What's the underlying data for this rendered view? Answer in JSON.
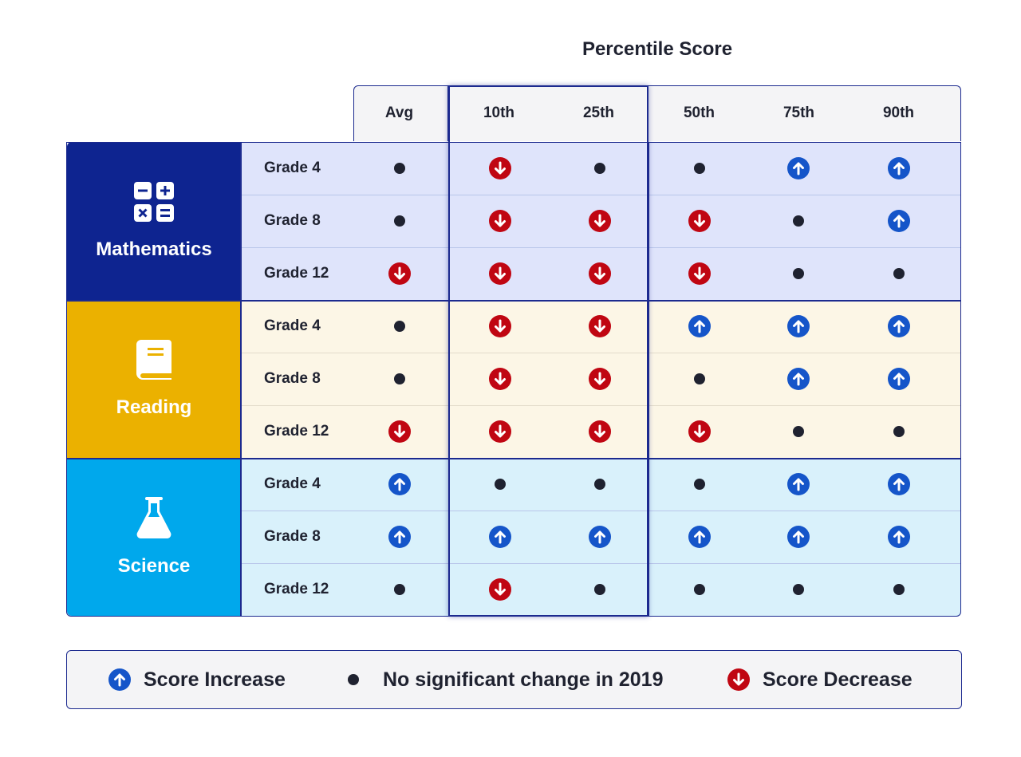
{
  "chart_data": {
    "type": "table",
    "title": "Percentile Score",
    "columns": [
      "Avg",
      "10th",
      "25th",
      "50th",
      "75th",
      "90th"
    ],
    "highlighted_columns": [
      "10th",
      "25th"
    ],
    "subjects": [
      {
        "name": "Mathematics",
        "icon": "calculator-icon",
        "color": "#0e2490",
        "row_bg": "#dfe4fb",
        "rows": [
          {
            "grade": "Grade 4",
            "values": [
              "none",
              "decrease",
              "none",
              "none",
              "increase",
              "increase"
            ]
          },
          {
            "grade": "Grade 8",
            "values": [
              "none",
              "decrease",
              "decrease",
              "decrease",
              "none",
              "increase"
            ]
          },
          {
            "grade": "Grade 12",
            "values": [
              "decrease",
              "decrease",
              "decrease",
              "decrease",
              "none",
              "none"
            ]
          }
        ]
      },
      {
        "name": "Reading",
        "icon": "book-icon",
        "color": "#ebb100",
        "row_bg": "#fcf6e6",
        "rows": [
          {
            "grade": "Grade 4",
            "values": [
              "none",
              "decrease",
              "decrease",
              "increase",
              "increase",
              "increase"
            ]
          },
          {
            "grade": "Grade 8",
            "values": [
              "none",
              "decrease",
              "decrease",
              "none",
              "increase",
              "increase"
            ]
          },
          {
            "grade": "Grade 12",
            "values": [
              "decrease",
              "decrease",
              "decrease",
              "decrease",
              "none",
              "none"
            ]
          }
        ]
      },
      {
        "name": "Science",
        "icon": "flask-icon",
        "color": "#00a8ec",
        "row_bg": "#d9f1fb",
        "rows": [
          {
            "grade": "Grade 4",
            "values": [
              "increase",
              "none",
              "none",
              "none",
              "increase",
              "increase"
            ]
          },
          {
            "grade": "Grade 8",
            "values": [
              "increase",
              "increase",
              "increase",
              "increase",
              "increase",
              "increase"
            ]
          },
          {
            "grade": "Grade 12",
            "values": [
              "none",
              "decrease",
              "none",
              "none",
              "none",
              "none"
            ]
          }
        ]
      }
    ],
    "legend": [
      {
        "symbol": "increase",
        "label": "Score Increase"
      },
      {
        "symbol": "none",
        "label": "No significant change in 2019"
      },
      {
        "symbol": "decrease",
        "label": "Score Decrease"
      }
    ]
  },
  "colors": {
    "increase": "#1555c9",
    "decrease": "#c00612",
    "none": "#1f2230",
    "border": "#1c2a8f"
  }
}
